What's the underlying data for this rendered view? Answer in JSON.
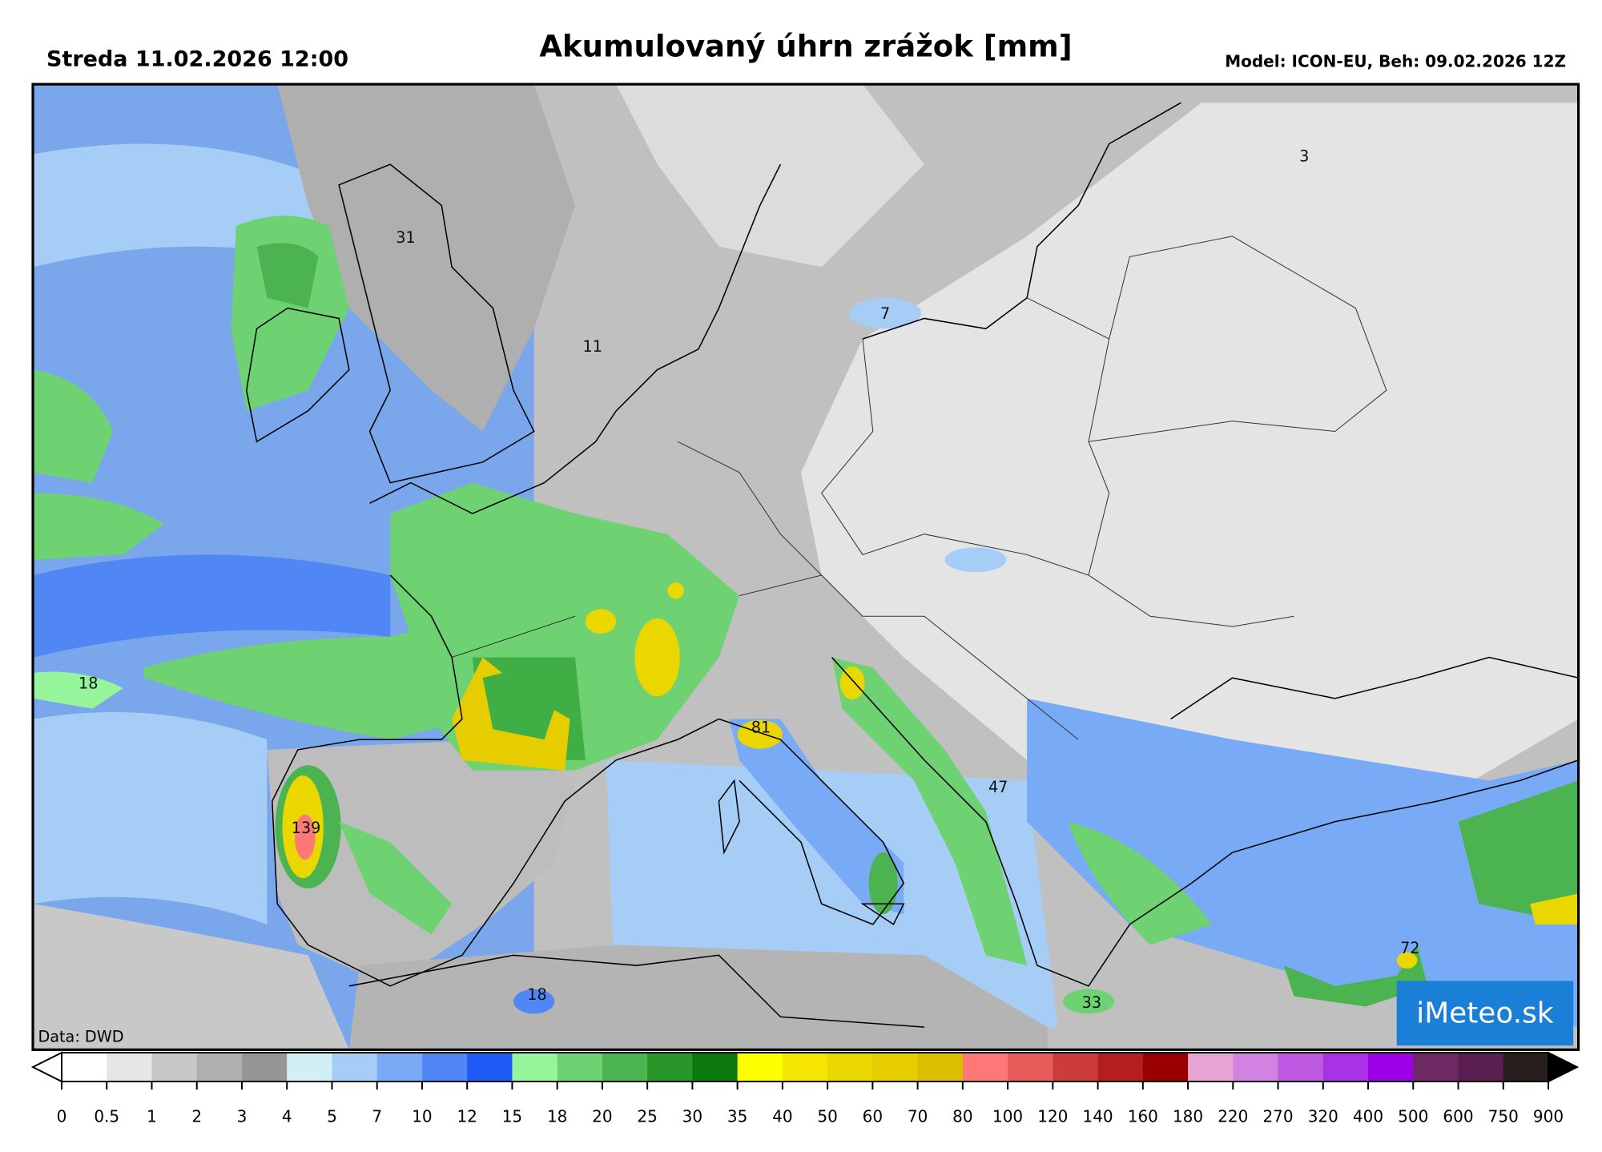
{
  "header": {
    "date": "Streda 11.02.2026 12:00",
    "title": "Akumulovaný úhrn zrážok [mm]",
    "model": "Model: ICON-EU, Beh: 09.02.2026 12Z"
  },
  "map": {
    "labels": [
      31,
      11,
      7,
      3,
      18,
      81,
      47,
      139,
      33,
      18,
      72
    ],
    "credit": "Data: DWD",
    "logo": "iMeteo.sk"
  },
  "legend": {
    "bounds": [
      0,
      0.5,
      1,
      2,
      3,
      4,
      5,
      7,
      10,
      12,
      15,
      18,
      20,
      25,
      30,
      35,
      40,
      50,
      60,
      70,
      80,
      100,
      120,
      140,
      160,
      180,
      220,
      270,
      320,
      400,
      500,
      600,
      750,
      900
    ],
    "colors": [
      "#ffffff",
      "#e6e6e6",
      "#c8c8c8",
      "#afafaf",
      "#969696",
      "#d2eff5",
      "#a5cdf5",
      "#78aaf5",
      "#5087f5",
      "#1e5af5",
      "#96f59b",
      "#6ed272",
      "#4bb450",
      "#289628",
      "#0a780a",
      "#ffff00",
      "#f5e600",
      "#ebd700",
      "#e6cd00",
      "#dcbe00",
      "#ff7878",
      "#e65a5a",
      "#cd3c3c",
      "#b41e1e",
      "#9b0000",
      "#e6a5d2",
      "#d282e1",
      "#be5ae1",
      "#aa32e6",
      "#9b00e6",
      "#6e2864",
      "#5a1e50",
      "#281e1e"
    ]
  }
}
